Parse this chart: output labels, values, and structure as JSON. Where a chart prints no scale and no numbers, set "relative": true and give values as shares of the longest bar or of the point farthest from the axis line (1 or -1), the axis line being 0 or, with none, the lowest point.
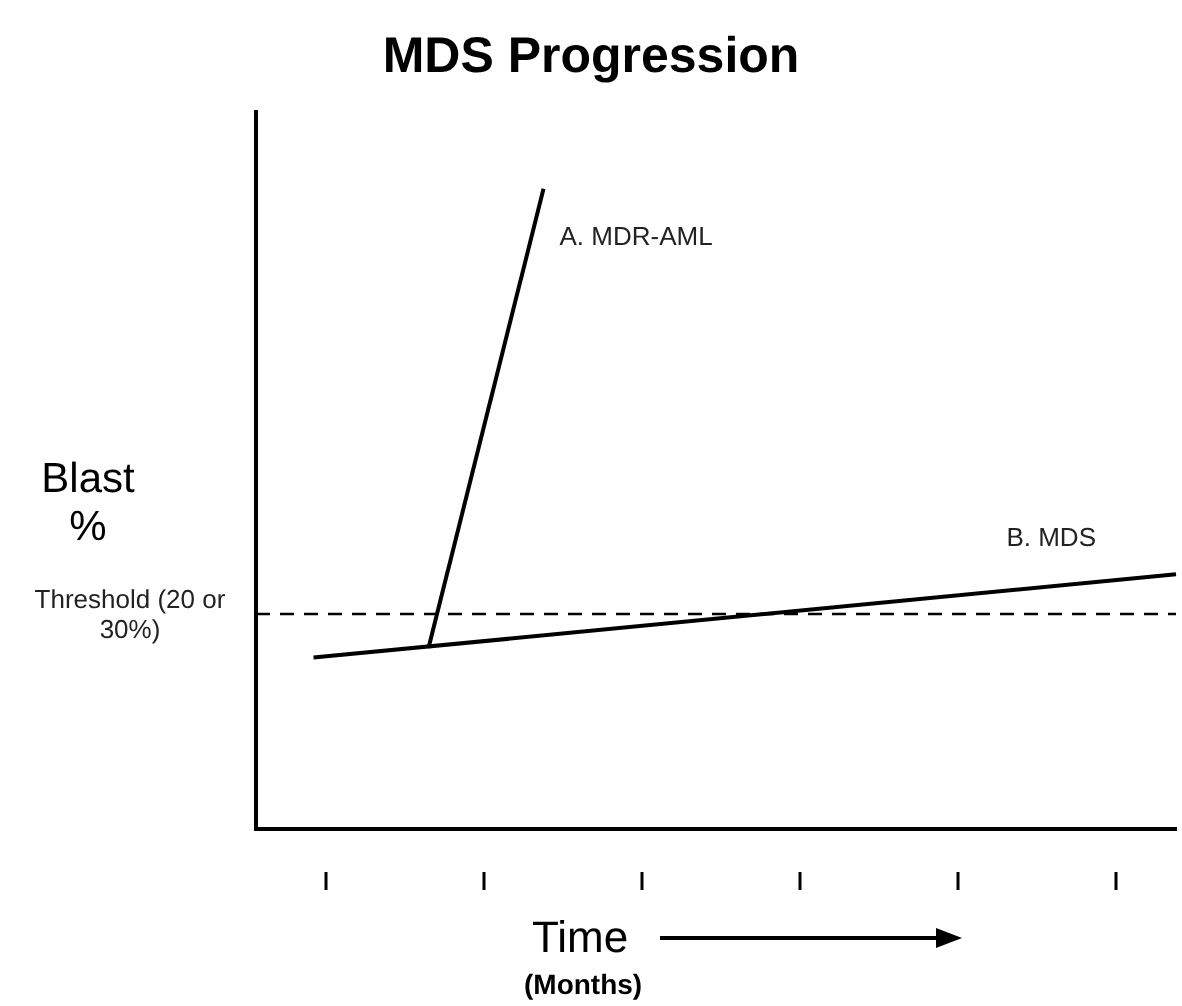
{
  "chart_data": {
    "type": "line",
    "title": "MDS Progression",
    "xlabel": "Time",
    "ylabel": "Blast %",
    "relative": true,
    "categories": [
      null,
      null,
      null,
      null,
      null,
      null,
      null,
      null,
      null,
      null,
      null,
      null,
      null,
      null,
      null,
      null,
      null
    ],
    "series": [
      {
        "name": "A. MDR-AML",
        "color": "#000000",
        "values": [
          null,
          null,
          null,
          0.283,
          null,
          1,
          null,
          null,
          null,
          null,
          null,
          null,
          null,
          null,
          null,
          null,
          null
        ]
      },
      {
        "name": "B. MDS",
        "color": "#000000",
        "values": [
          null,
          0.268,
          null,
          null,
          null,
          null,
          null,
          null,
          null,
          null,
          null,
          null,
          null,
          null,
          null,
          null,
          0.398
        ]
      }
    ],
    "ref_lines": [
      {
        "axis": "y",
        "value": 0.336,
        "label": "Threshold (20 or 30%)",
        "color": "#000000",
        "line_style": "dashed"
      }
    ],
    "annotations": [
      "(Months)"
    ],
    "grid": false,
    "legend": false,
    "marker": "none",
    "line_style": "solid"
  }
}
